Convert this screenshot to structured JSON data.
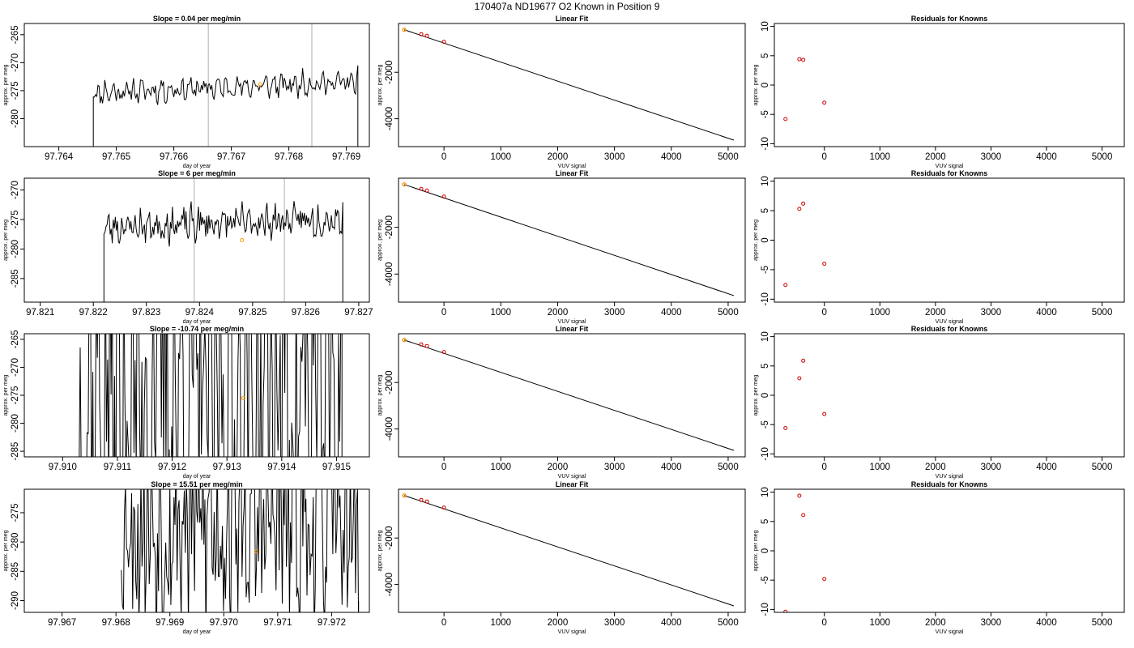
{
  "figure": {
    "title": "170407a     ND19677   O2 Known in Position  9"
  },
  "colors": {
    "trace": "#000000",
    "vline": "#bbbbbb",
    "known_point": "#ff9900",
    "residual_point": "#cc0000"
  },
  "chart_data": [
    {
      "type": "line",
      "row": 0,
      "panel": "time-series",
      "title": "Slope =  0.04  per meg/min",
      "xlabel": "day of year",
      "ylabel": "approx. per meg",
      "xlim": [
        97.7634,
        97.7694
      ],
      "ylim": [
        -285,
        -263
      ],
      "xticks": [
        97.764,
        97.765,
        97.766,
        97.767,
        97.768,
        97.769
      ],
      "yticks": [
        -280,
        -275,
        -270,
        -265
      ],
      "vlines": [
        97.7666,
        97.7684
      ],
      "highlight": {
        "x": 97.7675,
        "y": -273.9
      },
      "trace": {
        "x0": 97.7646,
        "x1": 97.7692,
        "mean": -274.4,
        "amp": 1.6,
        "noise": 1.4,
        "trend": 2.0,
        "seed": 11,
        "start_y": -290,
        "end_y": -290
      }
    },
    {
      "type": "line",
      "row": 0,
      "panel": "linear-fit",
      "title": "Linear Fit",
      "xlabel": "VUV signal",
      "ylabel": "approx. per meg",
      "xlim": [
        -800,
        5300
      ],
      "ylim": [
        -5200,
        100
      ],
      "xticks": [
        0,
        1000,
        2000,
        3000,
        4000,
        5000
      ],
      "yticks": [
        -4000,
        -2000
      ],
      "line": {
        "x": [
          -700,
          5100
        ],
        "y": [
          -170,
          -4920
        ]
      },
      "points": {
        "x": [
          -700,
          -400,
          -300,
          0
        ],
        "y": [
          -170,
          -360,
          -430,
          -690
        ]
      },
      "highlight": {
        "x": -700,
        "y": -170
      }
    },
    {
      "type": "scatter",
      "row": 0,
      "panel": "residuals",
      "title": "Residuals for Knowns",
      "xlabel": "VUV signal",
      "ylabel": "approx. per meg",
      "xlim": [
        -900,
        5400
      ],
      "ylim": [
        -10.5,
        10.5
      ],
      "xticks": [
        0,
        1000,
        2000,
        3000,
        4000,
        5000
      ],
      "yticks": [
        -10,
        -5,
        0,
        5,
        10
      ],
      "points": {
        "x": [
          -700,
          -450,
          -380,
          0
        ],
        "y": [
          -5.8,
          4.4,
          4.3,
          -3.0
        ]
      }
    },
    {
      "type": "line",
      "row": 1,
      "panel": "time-series",
      "title": "Slope =  6  per meg/min",
      "xlabel": "day of year",
      "ylabel": "approx. per meg",
      "xlim": [
        97.8207,
        97.8272
      ],
      "ylim": [
        -289,
        -268
      ],
      "xticks": [
        97.821,
        97.822,
        97.823,
        97.824,
        97.825,
        97.826,
        97.827
      ],
      "yticks": [
        -285,
        -280,
        -275,
        -270
      ],
      "vlines": [
        97.8239,
        97.8256
      ],
      "highlight": {
        "x": 97.8248,
        "y": -278.5
      },
      "trace": {
        "x0": 97.8222,
        "x1": 97.8267,
        "mean": -275.6,
        "amp": 1.8,
        "noise": 2.2,
        "trend": 1.5,
        "seed": 23,
        "start_y": -292,
        "end_y": -292
      }
    },
    {
      "type": "line",
      "row": 1,
      "panel": "linear-fit",
      "title": "Linear Fit",
      "xlabel": "VUV signal",
      "ylabel": "approx. per meg",
      "xlim": [
        -800,
        5300
      ],
      "ylim": [
        -5200,
        100
      ],
      "xticks": [
        0,
        1000,
        2000,
        3000,
        4000,
        5000
      ],
      "yticks": [
        -4000,
        -2000
      ],
      "line": {
        "x": [
          -700,
          5100
        ],
        "y": [
          -170,
          -4920
        ]
      },
      "points": {
        "x": [
          -700,
          -400,
          -300,
          0
        ],
        "y": [
          -170,
          -360,
          -430,
          -690
        ]
      },
      "highlight": {
        "x": -700,
        "y": -170
      }
    },
    {
      "type": "scatter",
      "row": 1,
      "panel": "residuals",
      "title": "Residuals for Knowns",
      "xlabel": "VUV signal",
      "ylabel": "approx. per meg",
      "xlim": [
        -900,
        5400
      ],
      "ylim": [
        -10.5,
        10.5
      ],
      "xticks": [
        0,
        1000,
        2000,
        3000,
        4000,
        5000
      ],
      "yticks": [
        -10,
        -5,
        0,
        5,
        10
      ],
      "points": {
        "x": [
          -700,
          -450,
          -380,
          0
        ],
        "y": [
          -7.6,
          5.3,
          6.2,
          -4.0
        ]
      }
    },
    {
      "type": "line",
      "row": 2,
      "panel": "time-series",
      "title": "Slope =  -10.74  per meg/min",
      "xlabel": "day of year",
      "ylabel": "approx. per meg",
      "xlim": [
        97.9093,
        97.9156
      ],
      "ylim": [
        -286,
        -264
      ],
      "xticks": [
        97.91,
        97.911,
        97.912,
        97.913,
        97.914,
        97.915
      ],
      "yticks": [
        -285,
        -280,
        -275,
        -270,
        -265
      ],
      "vlines": [],
      "highlight": {
        "x": 97.9133,
        "y": -275.5
      },
      "trace": {
        "x0": 97.9103,
        "x1": 97.9151,
        "mean": -275,
        "amp": 18,
        "noise": 30,
        "trend": 0,
        "seed": 37,
        "start_y": -300,
        "end_y": -300
      }
    },
    {
      "type": "line",
      "row": 2,
      "panel": "linear-fit",
      "title": "Linear Fit",
      "xlabel": "VUV signal",
      "ylabel": "approx. per meg",
      "xlim": [
        -800,
        5300
      ],
      "ylim": [
        -5200,
        100
      ],
      "xticks": [
        0,
        1000,
        2000,
        3000,
        4000,
        5000
      ],
      "yticks": [
        -4000,
        -2000
      ],
      "line": {
        "x": [
          -700,
          5100
        ],
        "y": [
          -170,
          -4920
        ]
      },
      "points": {
        "x": [
          -700,
          -400,
          -300,
          0
        ],
        "y": [
          -170,
          -360,
          -430,
          -690
        ]
      },
      "highlight": {
        "x": -700,
        "y": -170
      }
    },
    {
      "type": "scatter",
      "row": 2,
      "panel": "residuals",
      "title": "Residuals for Knowns",
      "xlabel": "VUV signal",
      "ylabel": "approx. per meg",
      "xlim": [
        -900,
        5400
      ],
      "ylim": [
        -10.5,
        10.5
      ],
      "xticks": [
        0,
        1000,
        2000,
        3000,
        4000,
        5000
      ],
      "yticks": [
        -10,
        -5,
        0,
        5,
        10
      ],
      "points": {
        "x": [
          -700,
          -450,
          -380,
          0
        ],
        "y": [
          -5.6,
          2.9,
          5.9,
          -3.2
        ]
      }
    },
    {
      "type": "line",
      "row": 3,
      "panel": "time-series",
      "title": "Slope =  15.51  per meg/min",
      "xlabel": "day of year",
      "ylabel": "approx. per meg",
      "xlim": [
        97.9663,
        97.9727
      ],
      "ylim": [
        -292,
        -271
      ],
      "xticks": [
        97.967,
        97.968,
        97.969,
        97.97,
        97.971,
        97.972
      ],
      "yticks": [
        -290,
        -285,
        -280,
        -275
      ],
      "vlines": [],
      "highlight": {
        "x": 97.9706,
        "y": -281.6
      },
      "trace": {
        "x0": 97.9681,
        "x1": 97.9725,
        "mean": -277,
        "amp": 8,
        "noise": 16,
        "trend": 0,
        "seed": 53,
        "start_y": -285,
        "end_y": -290
      }
    },
    {
      "type": "line",
      "row": 3,
      "panel": "linear-fit",
      "title": "Linear Fit",
      "xlabel": "VUV signal",
      "ylabel": "approx. per meg",
      "xlim": [
        -800,
        5300
      ],
      "ylim": [
        -5200,
        100
      ],
      "xticks": [
        0,
        1000,
        2000,
        3000,
        4000,
        5000
      ],
      "yticks": [
        -4000,
        -2000
      ],
      "line": {
        "x": [
          -700,
          5100
        ],
        "y": [
          -170,
          -4920
        ]
      },
      "points": {
        "x": [
          -700,
          -400,
          -300,
          0
        ],
        "y": [
          -170,
          -360,
          -430,
          -690
        ]
      },
      "highlight": {
        "x": -700,
        "y": -170
      }
    },
    {
      "type": "scatter",
      "row": 3,
      "panel": "residuals",
      "title": "Residuals for Knowns",
      "xlabel": "VUV signal",
      "ylabel": "approx. per meg",
      "xlim": [
        -900,
        5400
      ],
      "ylim": [
        -10.5,
        10.5
      ],
      "xticks": [
        0,
        1000,
        2000,
        3000,
        4000,
        5000
      ],
      "yticks": [
        -10,
        -5,
        0,
        5,
        10
      ],
      "points": {
        "x": [
          -700,
          -450,
          -380,
          0
        ],
        "y": [
          -10.4,
          9.4,
          6.1,
          -4.8
        ]
      }
    }
  ]
}
